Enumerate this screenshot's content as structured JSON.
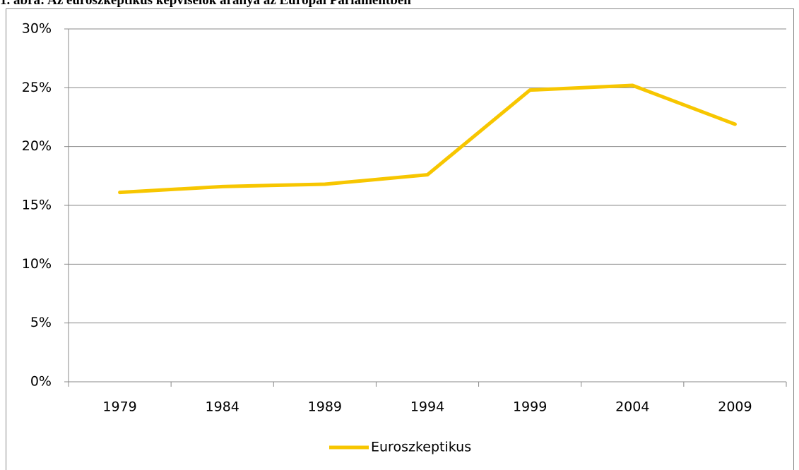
{
  "chart_data": {
    "type": "line",
    "title": "1. ábra: Az euroszkeptikus képviselők aránya az Európai Parlamentben",
    "categories": [
      "1979",
      "1984",
      "1989",
      "1994",
      "1999",
      "2004",
      "2009"
    ],
    "series": [
      {
        "name": "Euroszkeptikus",
        "color": "#f7c600",
        "values": [
          16.1,
          16.6,
          16.8,
          17.6,
          24.8,
          25.2,
          21.9
        ]
      }
    ],
    "ylim": [
      0,
      30
    ],
    "yticks": [
      {
        "value": 0,
        "label": "0%"
      },
      {
        "value": 5,
        "label": "5%"
      },
      {
        "value": 10,
        "label": "10%"
      },
      {
        "value": 15,
        "label": "15%"
      },
      {
        "value": 20,
        "label": "20%"
      },
      {
        "value": 25,
        "label": "25%"
      },
      {
        "value": 30,
        "label": "30%"
      }
    ],
    "grid": true,
    "legend": "bottom"
  }
}
